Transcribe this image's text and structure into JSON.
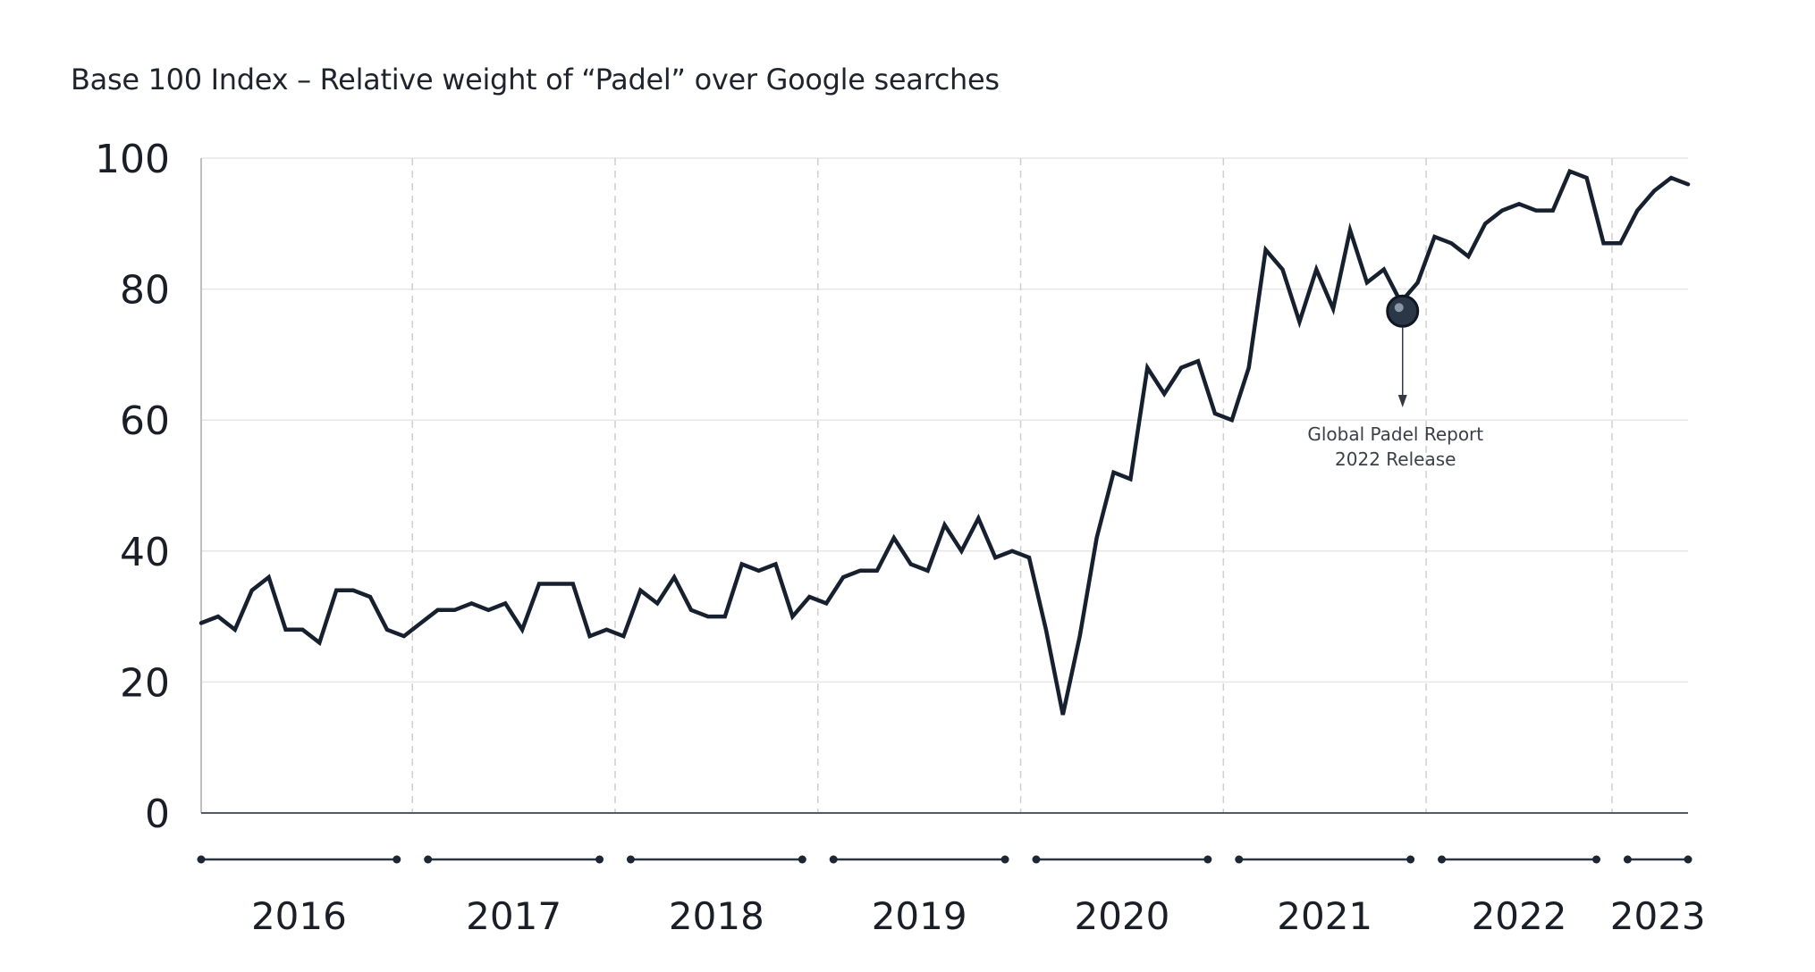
{
  "chart_data": {
    "type": "line",
    "title": "Base 100 Index – Relative weight of “Padel” over Google searches",
    "xlabel": "",
    "ylabel": "",
    "ylim": [
      0,
      100
    ],
    "yticks": [
      "0",
      "20",
      "40",
      "60",
      "80",
      "100"
    ],
    "xticks": [
      "2016",
      "2017",
      "2018",
      "2019",
      "2020",
      "2021",
      "2022",
      "2023"
    ],
    "grid": true,
    "series": [
      {
        "values": [
          29,
          30,
          28,
          34,
          36,
          28,
          28,
          26,
          34,
          34,
          33,
          28,
          27,
          29,
          31,
          31,
          32,
          31,
          32,
          28,
          35,
          35,
          35,
          27,
          28,
          27,
          34,
          32,
          36,
          31,
          30,
          30,
          38,
          37,
          38,
          30,
          33,
          32,
          36,
          37,
          37,
          42,
          38,
          37,
          44,
          40,
          45,
          39,
          40,
          39,
          28,
          15,
          27,
          42,
          52,
          51,
          68,
          64,
          68,
          69,
          61,
          60,
          68,
          86,
          83,
          75,
          83,
          77,
          89,
          81,
          83,
          78,
          81,
          88,
          87,
          85,
          90,
          92,
          93,
          92,
          92,
          98,
          97,
          87,
          87,
          92,
          95,
          97,
          96
        ]
      }
    ],
    "annotation": {
      "index": 71,
      "lines": [
        "Global Padel Report",
        "2022 Release"
      ]
    },
    "colors": {
      "line": "#17202e",
      "grid": "#e6e6e6",
      "axis": "#1f2a38"
    }
  }
}
